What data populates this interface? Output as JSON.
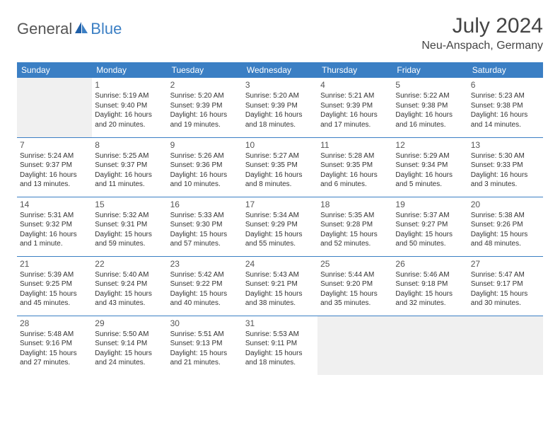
{
  "brand": {
    "part1": "General",
    "part2": "Blue"
  },
  "title": "July 2024",
  "location": "Neu-Anspach, Germany",
  "header_bg": "#3b7fc4",
  "border_color": "#3b7fc4",
  "empty_bg": "#f0f0f0",
  "weekdays": [
    "Sunday",
    "Monday",
    "Tuesday",
    "Wednesday",
    "Thursday",
    "Friday",
    "Saturday"
  ],
  "weeks": [
    [
      null,
      {
        "n": "1",
        "sr": "5:19 AM",
        "ss": "9:40 PM",
        "dl": "16 hours and 20 minutes."
      },
      {
        "n": "2",
        "sr": "5:20 AM",
        "ss": "9:39 PM",
        "dl": "16 hours and 19 minutes."
      },
      {
        "n": "3",
        "sr": "5:20 AM",
        "ss": "9:39 PM",
        "dl": "16 hours and 18 minutes."
      },
      {
        "n": "4",
        "sr": "5:21 AM",
        "ss": "9:39 PM",
        "dl": "16 hours and 17 minutes."
      },
      {
        "n": "5",
        "sr": "5:22 AM",
        "ss": "9:38 PM",
        "dl": "16 hours and 16 minutes."
      },
      {
        "n": "6",
        "sr": "5:23 AM",
        "ss": "9:38 PM",
        "dl": "16 hours and 14 minutes."
      }
    ],
    [
      {
        "n": "7",
        "sr": "5:24 AM",
        "ss": "9:37 PM",
        "dl": "16 hours and 13 minutes."
      },
      {
        "n": "8",
        "sr": "5:25 AM",
        "ss": "9:37 PM",
        "dl": "16 hours and 11 minutes."
      },
      {
        "n": "9",
        "sr": "5:26 AM",
        "ss": "9:36 PM",
        "dl": "16 hours and 10 minutes."
      },
      {
        "n": "10",
        "sr": "5:27 AM",
        "ss": "9:35 PM",
        "dl": "16 hours and 8 minutes."
      },
      {
        "n": "11",
        "sr": "5:28 AM",
        "ss": "9:35 PM",
        "dl": "16 hours and 6 minutes."
      },
      {
        "n": "12",
        "sr": "5:29 AM",
        "ss": "9:34 PM",
        "dl": "16 hours and 5 minutes."
      },
      {
        "n": "13",
        "sr": "5:30 AM",
        "ss": "9:33 PM",
        "dl": "16 hours and 3 minutes."
      }
    ],
    [
      {
        "n": "14",
        "sr": "5:31 AM",
        "ss": "9:32 PM",
        "dl": "16 hours and 1 minute."
      },
      {
        "n": "15",
        "sr": "5:32 AM",
        "ss": "9:31 PM",
        "dl": "15 hours and 59 minutes."
      },
      {
        "n": "16",
        "sr": "5:33 AM",
        "ss": "9:30 PM",
        "dl": "15 hours and 57 minutes."
      },
      {
        "n": "17",
        "sr": "5:34 AM",
        "ss": "9:29 PM",
        "dl": "15 hours and 55 minutes."
      },
      {
        "n": "18",
        "sr": "5:35 AM",
        "ss": "9:28 PM",
        "dl": "15 hours and 52 minutes."
      },
      {
        "n": "19",
        "sr": "5:37 AM",
        "ss": "9:27 PM",
        "dl": "15 hours and 50 minutes."
      },
      {
        "n": "20",
        "sr": "5:38 AM",
        "ss": "9:26 PM",
        "dl": "15 hours and 48 minutes."
      }
    ],
    [
      {
        "n": "21",
        "sr": "5:39 AM",
        "ss": "9:25 PM",
        "dl": "15 hours and 45 minutes."
      },
      {
        "n": "22",
        "sr": "5:40 AM",
        "ss": "9:24 PM",
        "dl": "15 hours and 43 minutes."
      },
      {
        "n": "23",
        "sr": "5:42 AM",
        "ss": "9:22 PM",
        "dl": "15 hours and 40 minutes."
      },
      {
        "n": "24",
        "sr": "5:43 AM",
        "ss": "9:21 PM",
        "dl": "15 hours and 38 minutes."
      },
      {
        "n": "25",
        "sr": "5:44 AM",
        "ss": "9:20 PM",
        "dl": "15 hours and 35 minutes."
      },
      {
        "n": "26",
        "sr": "5:46 AM",
        "ss": "9:18 PM",
        "dl": "15 hours and 32 minutes."
      },
      {
        "n": "27",
        "sr": "5:47 AM",
        "ss": "9:17 PM",
        "dl": "15 hours and 30 minutes."
      }
    ],
    [
      {
        "n": "28",
        "sr": "5:48 AM",
        "ss": "9:16 PM",
        "dl": "15 hours and 27 minutes."
      },
      {
        "n": "29",
        "sr": "5:50 AM",
        "ss": "9:14 PM",
        "dl": "15 hours and 24 minutes."
      },
      {
        "n": "30",
        "sr": "5:51 AM",
        "ss": "9:13 PM",
        "dl": "15 hours and 21 minutes."
      },
      {
        "n": "31",
        "sr": "5:53 AM",
        "ss": "9:11 PM",
        "dl": "15 hours and 18 minutes."
      },
      null,
      null,
      null
    ]
  ],
  "labels": {
    "sunrise": "Sunrise:",
    "sunset": "Sunset:",
    "daylight": "Daylight:"
  }
}
